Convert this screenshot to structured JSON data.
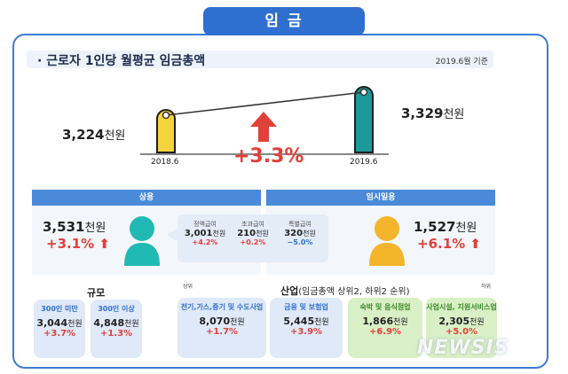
{
  "header": {
    "title": "임 금"
  },
  "subtitle": {
    "text": "근로자 1인당 월평균 임금총액",
    "date": "2019.6월 기준"
  },
  "comparison": {
    "prev": {
      "year": "2018.6",
      "value": "3,224",
      "unit": "천원"
    },
    "curr": {
      "year": "2019.6",
      "value": "3,329",
      "unit": "천원"
    },
    "change": "+3.3%"
  },
  "regular": {
    "label": "상용",
    "value": "3,531",
    "unit": "천원",
    "change": "+3.1%",
    "breakdown": [
      {
        "label": "정액급여",
        "value": "3,001",
        "unit": "천원",
        "change": "+4.2%"
      },
      {
        "label": "초과급여",
        "value": "210",
        "unit": "천원",
        "change": "+0.2%"
      },
      {
        "label": "특별급여",
        "value": "320",
        "unit": "천원",
        "change": "−5.0%"
      }
    ]
  },
  "temporary": {
    "label": "임시일용",
    "value": "1,527",
    "unit": "천원",
    "change": "+6.1%"
  },
  "scale": {
    "label": "규모",
    "items": [
      {
        "name": "300인 미만",
        "value": "3,044",
        "unit": "천원",
        "change": "+3.7%"
      },
      {
        "name": "300인 이상",
        "value": "4,848",
        "unit": "천원",
        "change": "+1.3%"
      }
    ]
  },
  "industry": {
    "label": "산업",
    "note": "(임금총액 상위2, 하위2 순위)",
    "top_label": "상위",
    "bottom_label": "하위",
    "items": [
      {
        "name": "전기,가스,증기 및 수도사업",
        "value": "8,070",
        "unit": "천원",
        "change": "+1.7%"
      },
      {
        "name": "금융 및 보험업",
        "value": "5,445",
        "unit": "천원",
        "change": "+3.9%"
      },
      {
        "name": "숙박 및 음식점업",
        "value": "1,866",
        "unit": "천원",
        "change": "+6.9%"
      },
      {
        "name": "사업시설, 지원서비스업",
        "value": "2,305",
        "unit": "천원",
        "change": "+5.0%"
      }
    ]
  },
  "watermark": "NEWSIS",
  "colors": {
    "accent": "#2f6fcf",
    "red": "#e0413b",
    "yellow": "#f5d33c",
    "teal": "#1b9a9a"
  }
}
